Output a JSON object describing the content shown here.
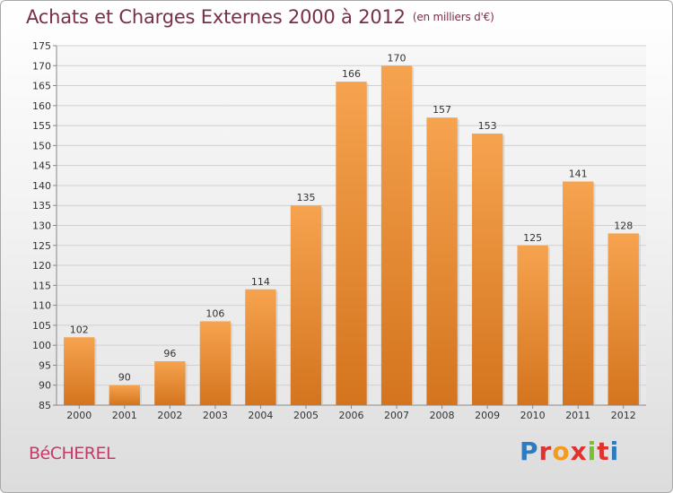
{
  "title": "Achats et Charges Externes 2000 à 2012",
  "subtitle": "(en milliers d'€)",
  "commune": "BéCHEREL",
  "logo": [
    "P",
    "r",
    "o",
    "x",
    "i",
    "t",
    "i"
  ],
  "colors": {
    "bar_top": "#f6a34f",
    "bar_bottom": "#d4741e",
    "title": "#7a2f45",
    "commune": "#c43a6a"
  },
  "chart_data": {
    "type": "bar",
    "title": "Achats et Charges Externes 2000 à 2012",
    "subtitle": "(en milliers d'€)",
    "xlabel": "",
    "ylabel": "",
    "categories": [
      "2000",
      "2001",
      "2002",
      "2003",
      "2004",
      "2005",
      "2006",
      "2007",
      "2008",
      "2009",
      "2010",
      "2011",
      "2012"
    ],
    "values": [
      102,
      90,
      96,
      106,
      114,
      135,
      166,
      170,
      157,
      153,
      125,
      141,
      128
    ],
    "ylim": [
      85,
      175
    ],
    "yticks": [
      85,
      90,
      95,
      100,
      105,
      110,
      115,
      120,
      125,
      130,
      135,
      140,
      145,
      150,
      155,
      160,
      165,
      170,
      175
    ],
    "grid": true,
    "data_labels": true
  }
}
